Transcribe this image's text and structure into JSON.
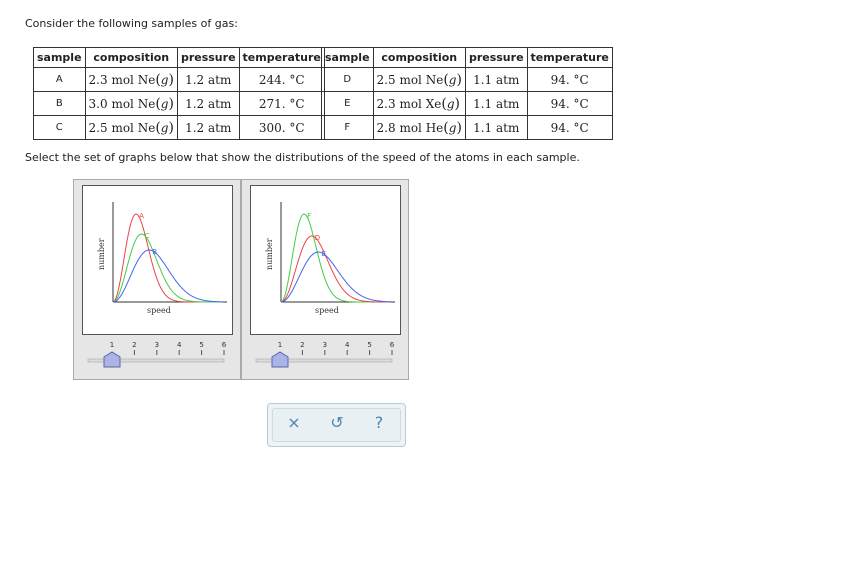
{
  "prompt": "Consider the following samples of gas:",
  "instruction": "Select the set of graphs below that show the distributions of the speed of the atoms in each sample.",
  "table_headers": [
    "sample",
    "composition",
    "pressure",
    "temperature"
  ],
  "tables": [
    [
      {
        "sample": "A",
        "amount": "2.3 mol",
        "gas": "Ne",
        "state": "g",
        "pressure": "1.2 atm",
        "temperature": "244. °C"
      },
      {
        "sample": "B",
        "amount": "3.0 mol",
        "gas": "Ne",
        "state": "g",
        "pressure": "1.2 atm",
        "temperature": "271. °C"
      },
      {
        "sample": "C",
        "amount": "2.5 mol",
        "gas": "Ne",
        "state": "g",
        "pressure": "1.2 atm",
        "temperature": "300. °C"
      }
    ],
    [
      {
        "sample": "D",
        "amount": "2.5 mol",
        "gas": "Ne",
        "state": "g",
        "pressure": "1.1 atm",
        "temperature": "94. °C"
      },
      {
        "sample": "E",
        "amount": "2.3 mol",
        "gas": "Xe",
        "state": "g",
        "pressure": "1.1 atm",
        "temperature": "94. °C"
      },
      {
        "sample": "F",
        "amount": "2.8 mol",
        "gas": "He",
        "state": "g",
        "pressure": "1.1 atm",
        "temperature": "94. °C"
      }
    ]
  ],
  "graphs": [
    {
      "x_label": "speed",
      "y_label": "number",
      "curves": [
        {
          "label": "A",
          "color": "#ee4444",
          "peak": 0.21,
          "height": 0.88
        },
        {
          "label": "C",
          "color": "#44cc44",
          "peak": 0.26,
          "height": 0.68
        },
        {
          "label": "B",
          "color": "#4466ee",
          "peak": 0.33,
          "height": 0.52
        }
      ],
      "slider_ticks": [
        "1",
        "2",
        "3",
        "4",
        "5",
        "6"
      ],
      "slider_value": 1
    },
    {
      "x_label": "speed",
      "y_label": "number",
      "curves": [
        {
          "label": "F",
          "color": "#44cc44",
          "peak": 0.21,
          "height": 0.88
        },
        {
          "label": "D",
          "color": "#ee4444",
          "peak": 0.28,
          "height": 0.66
        },
        {
          "label": "E",
          "color": "#4466ee",
          "peak": 0.34,
          "height": 0.5
        }
      ],
      "slider_ticks": [
        "1",
        "2",
        "3",
        "4",
        "5",
        "6"
      ],
      "slider_value": 1
    }
  ],
  "actions": {
    "clear": "×",
    "undo": "↺",
    "help": "?"
  }
}
